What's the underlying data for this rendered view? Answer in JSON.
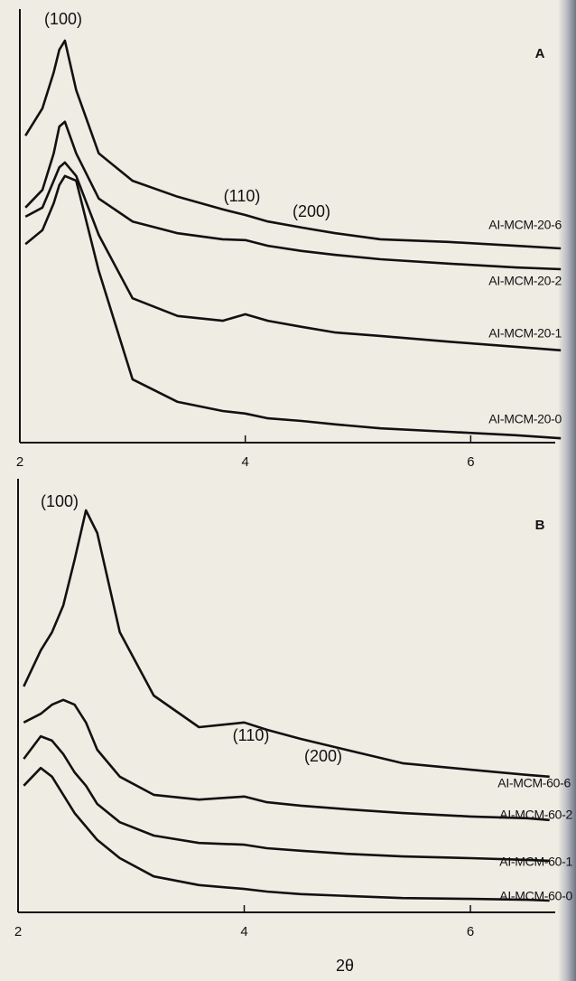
{
  "chart_data": [
    {
      "type": "line",
      "panel": "A",
      "x": [
        2.05,
        2.2,
        2.3,
        2.35,
        2.4,
        2.5,
        2.7,
        3.0,
        3.4,
        3.8,
        4.0,
        4.2,
        4.5,
        4.8,
        5.2,
        5.8,
        6.4,
        6.8
      ],
      "xlim": [
        2,
        6.75
      ],
      "ylim": [
        0,
        100
      ],
      "xticks": [
        2,
        4,
        6
      ],
      "annotations": [
        "(100)",
        "(110)",
        "(200)"
      ],
      "series": [
        {
          "name": "AI-MCM-20-6",
          "color": "#111111",
          "values": [
            70.8,
            77.1,
            85.4,
            90.6,
            92.7,
            81.3,
            66.7,
            60.4,
            56.7,
            53.8,
            52.5,
            51.0,
            49.6,
            48.3,
            46.9,
            46.3,
            45.4,
            44.8
          ]
        },
        {
          "name": "AI-MCM-20-2",
          "color": "#111111",
          "values": [
            54.2,
            58.3,
            66.7,
            72.9,
            74.0,
            66.7,
            56.3,
            51.0,
            48.3,
            46.9,
            46.7,
            45.4,
            44.2,
            43.3,
            42.3,
            41.3,
            40.4,
            40.0
          ]
        },
        {
          "name": "AI-MCM-20-1",
          "color": "#111111",
          "values": [
            52.1,
            54.2,
            60.4,
            63.5,
            64.6,
            61.5,
            47.9,
            33.3,
            29.2,
            28.1,
            29.6,
            28.1,
            26.7,
            25.4,
            24.6,
            23.3,
            22.1,
            21.3
          ]
        },
        {
          "name": "AI-MCM-20-0",
          "color": "#111111",
          "values": [
            45.8,
            49.0,
            55.2,
            59.4,
            61.5,
            60.4,
            39.6,
            14.6,
            9.4,
            7.3,
            6.7,
            5.6,
            5.0,
            4.2,
            3.3,
            2.5,
            1.7,
            1.0
          ]
        }
      ]
    },
    {
      "type": "line",
      "panel": "B",
      "xlabel": "2θ",
      "x": [
        2.05,
        2.2,
        2.3,
        2.4,
        2.5,
        2.6,
        2.7,
        2.9,
        3.2,
        3.6,
        4.0,
        4.2,
        4.5,
        4.9,
        5.4,
        6.0,
        6.5,
        6.7
      ],
      "xlim": [
        2,
        6.75
      ],
      "ylim": [
        0,
        100
      ],
      "xticks": [
        2,
        4,
        6
      ],
      "annotations": [
        "(100)",
        "(110)",
        "(200)"
      ],
      "series": [
        {
          "name": "AI-MCM-60-6",
          "color": "#111111",
          "values": [
            52.1,
            60.4,
            64.6,
            70.8,
            81.3,
            92.7,
            87.5,
            64.6,
            50.0,
            42.7,
            43.8,
            42.1,
            40.0,
            37.5,
            34.4,
            32.9,
            31.7,
            31.3
          ]
        },
        {
          "name": "AI-MCM-60-2",
          "color": "#111111",
          "values": [
            43.8,
            45.8,
            47.9,
            49.0,
            47.9,
            43.8,
            37.5,
            31.3,
            27.1,
            26.0,
            26.7,
            25.4,
            24.6,
            23.8,
            22.9,
            22.1,
            21.7,
            21.3
          ]
        },
        {
          "name": "AI-MCM-60-1",
          "color": "#111111",
          "values": [
            35.4,
            40.6,
            39.6,
            36.5,
            32.3,
            29.2,
            25.0,
            20.8,
            17.7,
            16.0,
            15.6,
            14.8,
            14.2,
            13.5,
            12.9,
            12.5,
            12.1,
            11.9
          ]
        },
        {
          "name": "AI-MCM-60-0",
          "color": "#111111",
          "values": [
            29.2,
            33.3,
            31.3,
            27.1,
            22.9,
            19.8,
            16.7,
            12.5,
            8.3,
            6.3,
            5.4,
            4.8,
            4.2,
            3.8,
            3.3,
            3.1,
            2.9,
            2.7
          ]
        }
      ]
    }
  ]
}
